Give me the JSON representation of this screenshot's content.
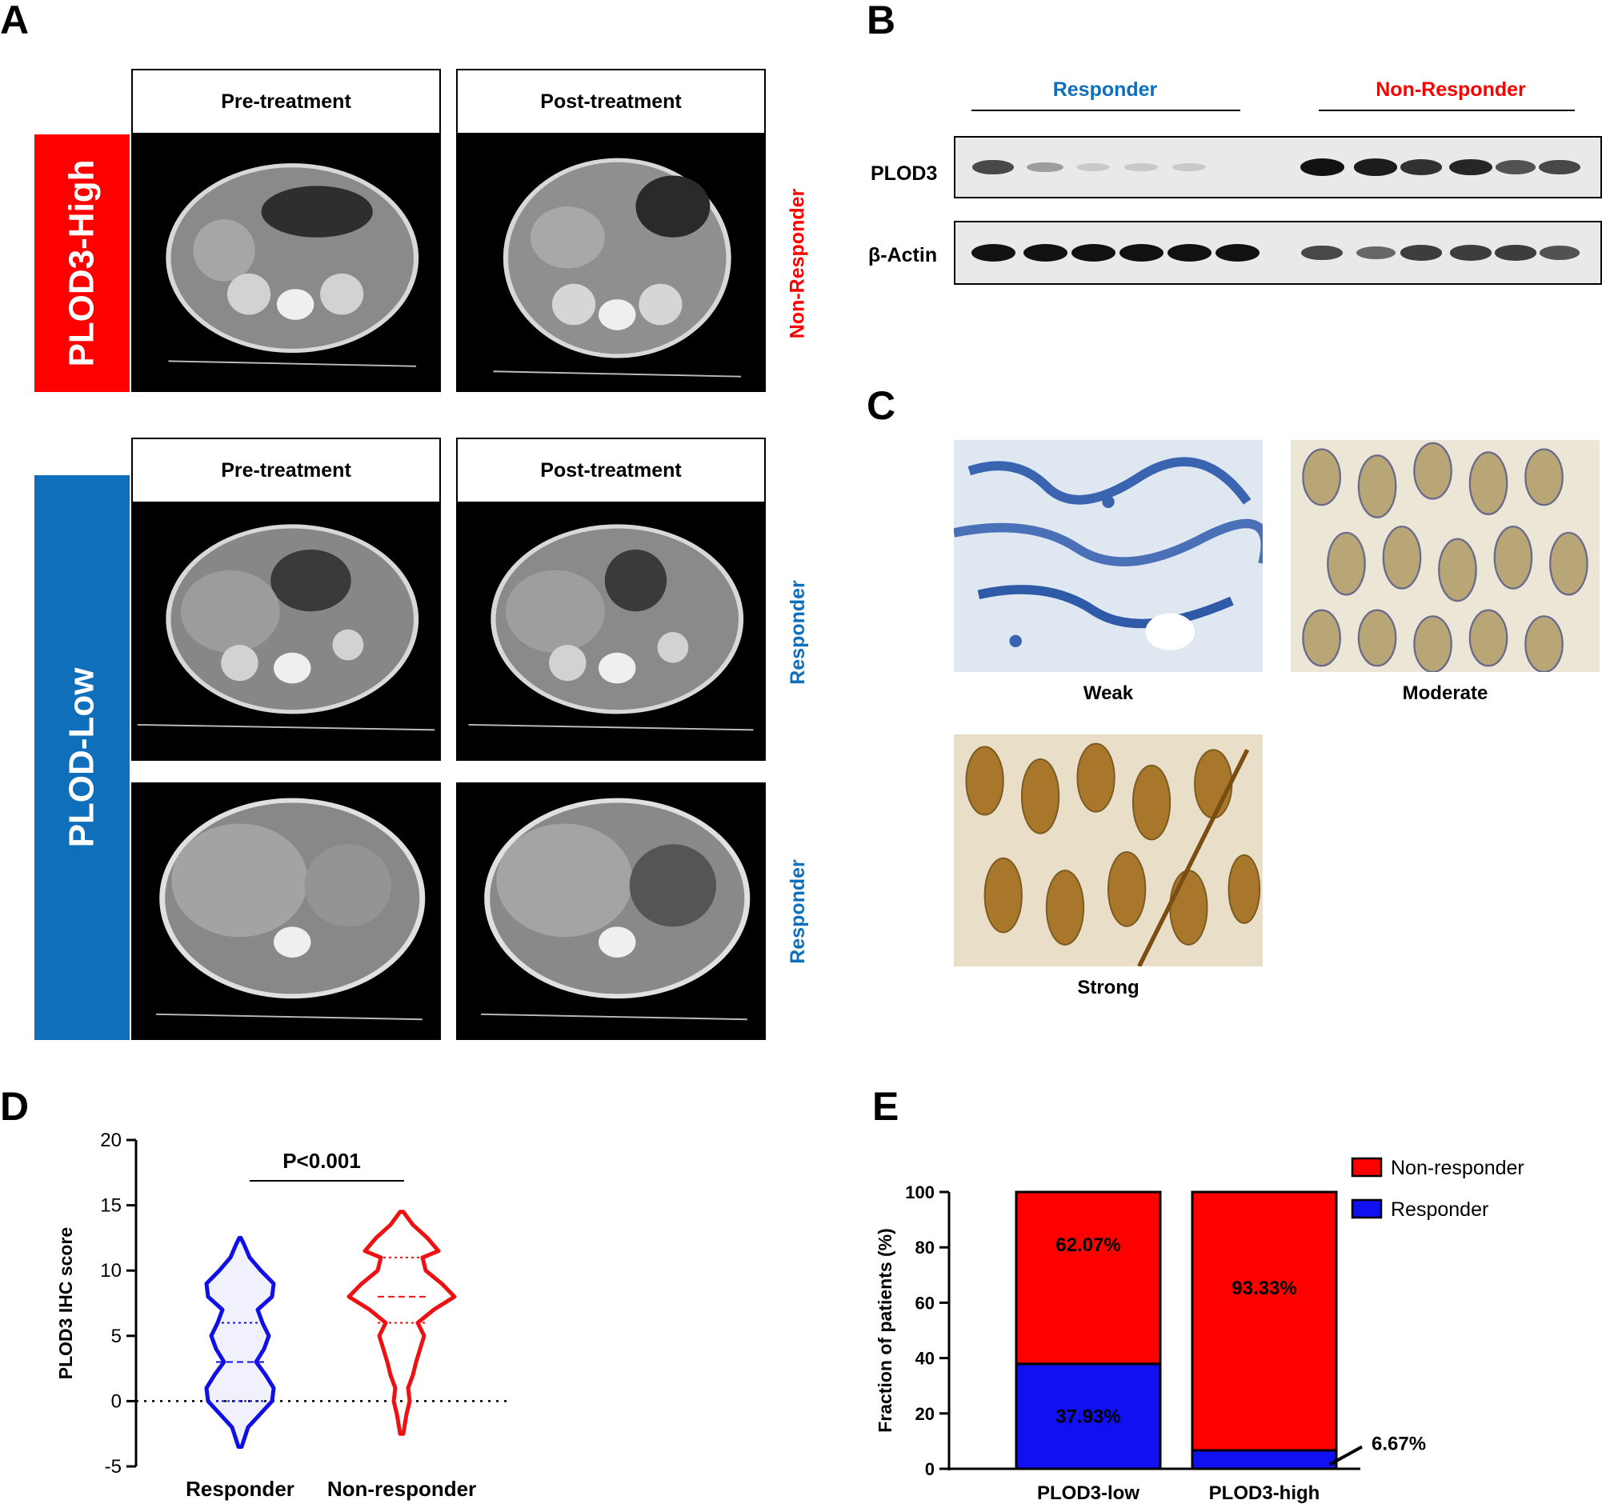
{
  "panels": {
    "a": "A",
    "b": "B",
    "c": "C",
    "d": "D",
    "e": "E"
  },
  "panel_a": {
    "headers": [
      "Pre-treatment",
      "Post-treatment",
      "Pre-treatment",
      "Post-treatment"
    ],
    "group_high": "PLOD3-High",
    "group_low": "PLOD-Low",
    "status_1": "Non-Responder",
    "status_2": "Responder",
    "status_3": "Responder",
    "colors": {
      "high": "#ff0000",
      "low": "#0f6fba"
    }
  },
  "panel_b": {
    "responder": "Responder",
    "non_responder": "Non-Responder",
    "row1": "PLOD3",
    "row2": "β-Actin",
    "plod3_intensity": [
      0.75,
      0.35,
      0.15,
      0.08,
      0.12,
      0.0,
      1.0,
      0.95,
      0.85,
      0.9,
      0.7,
      0.75
    ],
    "actin_intensity": [
      1.0,
      1.0,
      1.0,
      1.0,
      1.0,
      1.0,
      0.75,
      0.6,
      0.8,
      0.8,
      0.8,
      0.7
    ]
  },
  "panel_c": {
    "captions": [
      "Weak",
      "Moderate",
      "Strong"
    ]
  },
  "chart_data": [
    {
      "type": "violin",
      "ylabel": "PLOD3 IHC score",
      "ylim": [
        -5,
        20
      ],
      "yticks": [
        "-5",
        "0",
        "5",
        "10",
        "15",
        "20"
      ],
      "categories": [
        "Responder",
        "Non-responder"
      ],
      "annotation": "P<0.001",
      "series": [
        {
          "name": "Responder",
          "color": "#1010e6",
          "min": -3.5,
          "max": 12.5,
          "q1": 0,
          "median": 3,
          "q3": 6
        },
        {
          "name": "Non-responder",
          "color": "#ee1111",
          "min": -2.5,
          "max": 14.5,
          "q1": 6,
          "median": 8,
          "q3": 11
        }
      ]
    },
    {
      "type": "bar",
      "stacked": true,
      "ylabel": "Fraction of patients (%)",
      "ylim": [
        0,
        100
      ],
      "yticks": [
        "0",
        "20",
        "40",
        "60",
        "80",
        "100"
      ],
      "categories": [
        "PLOD3-low",
        "PLOD3-high"
      ],
      "series": [
        {
          "name": "Responder",
          "color": "#1010f0",
          "values": [
            37.93,
            6.67
          ],
          "labels": [
            "37.93%",
            "6.67%"
          ]
        },
        {
          "name": "Non-responder",
          "color": "#ff0000",
          "values": [
            62.07,
            93.33
          ],
          "labels": [
            "62.07%",
            "93.33%"
          ]
        }
      ],
      "legend": [
        "Non-responder",
        "Responder"
      ],
      "legend_position": "top-right"
    }
  ]
}
